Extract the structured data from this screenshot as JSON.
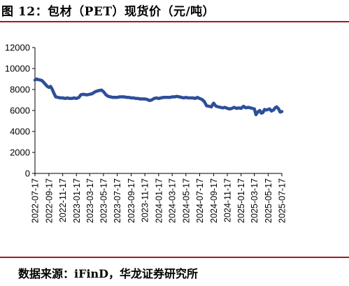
{
  "figure": {
    "title": "图 12：包材（PET）现货价（元/吨）",
    "source": "数据来源：iFinD，华龙证券研究所"
  },
  "chart_data": {
    "type": "line",
    "title": "图 12：包材（PET）现货价（元/吨）",
    "xlabel": "",
    "ylabel": "",
    "ylim": [
      0,
      12000
    ],
    "yticks": [
      0,
      2000,
      4000,
      6000,
      8000,
      10000,
      12000
    ],
    "ytick_labels": [
      "0",
      "2000",
      "4000",
      "6000",
      "8000",
      "10000",
      "12000"
    ],
    "xlim": [
      "2022-07-17",
      "2025-07-17"
    ],
    "xtick_labels": [
      "2022-07-17",
      "2022-09-17",
      "2022-11-17",
      "2023-01-17",
      "2023-03-17",
      "2023-05-17",
      "2023-07-17",
      "2023-09-17",
      "2023-11-17",
      "2024-01-17",
      "2024-03-17",
      "2024-05-17",
      "2024-07-17",
      "2024-09-17",
      "2024-11-17",
      "2025-01-17",
      "2025-03-17",
      "2025-05-17",
      "2025-07-17"
    ],
    "grid": false,
    "legend": "none",
    "color": "#2e4f9a",
    "series": [
      {
        "x": [
          "2022-07-17",
          "2022-07-24",
          "2022-08-01",
          "2022-08-10",
          "2022-08-17",
          "2022-08-24",
          "2022-09-01",
          "2022-09-10",
          "2022-09-17",
          "2022-09-24",
          "2022-10-01",
          "2022-10-08",
          "2022-10-17",
          "2022-10-28",
          "2022-11-07",
          "2022-11-17",
          "2022-11-28",
          "2022-12-08",
          "2022-12-17",
          "2022-12-28",
          "2023-01-06",
          "2023-01-17",
          "2023-01-28",
          "2023-02-06",
          "2023-02-17",
          "2023-02-28",
          "2023-03-08",
          "2023-03-17",
          "2023-03-28",
          "2023-04-07",
          "2023-04-17",
          "2023-04-28",
          "2023-05-08",
          "2023-05-17",
          "2023-05-28",
          "2023-06-07",
          "2023-06-17",
          "2023-06-28",
          "2023-07-07",
          "2023-07-17",
          "2023-07-28",
          "2023-08-07",
          "2023-08-17",
          "2023-08-28",
          "2023-09-07",
          "2023-09-17",
          "2023-09-28",
          "2023-10-08",
          "2023-10-17",
          "2023-10-28",
          "2023-11-07",
          "2023-11-17",
          "2023-11-28",
          "2023-12-07",
          "2023-12-17",
          "2023-12-28",
          "2024-01-07",
          "2024-01-17",
          "2024-01-28",
          "2024-02-07",
          "2024-02-17",
          "2024-02-28",
          "2024-03-08",
          "2024-03-17",
          "2024-03-28",
          "2024-04-07",
          "2024-04-17",
          "2024-04-28",
          "2024-05-07",
          "2024-05-17",
          "2024-05-28",
          "2024-06-07",
          "2024-06-17",
          "2024-06-28",
          "2024-07-07",
          "2024-07-17",
          "2024-07-28",
          "2024-08-07",
          "2024-08-17",
          "2024-08-28",
          "2024-09-07",
          "2024-09-17",
          "2024-09-28",
          "2024-10-08",
          "2024-10-17",
          "2024-10-28",
          "2024-11-07",
          "2024-11-17",
          "2024-11-28",
          "2024-12-07",
          "2024-12-17",
          "2024-12-28",
          "2025-01-07",
          "2025-01-17",
          "2025-01-28",
          "2025-02-07",
          "2025-02-17",
          "2025-02-28",
          "2025-03-08",
          "2025-03-17",
          "2025-03-24",
          "2025-04-01",
          "2025-04-10",
          "2025-04-17",
          "2025-04-24",
          "2025-05-01",
          "2025-05-10",
          "2025-05-17",
          "2025-05-24",
          "2025-06-01",
          "2025-06-10",
          "2025-06-17",
          "2025-06-24",
          "2025-07-01",
          "2025-07-10",
          "2025-07-17"
        ],
        "y": [
          8900,
          9000,
          8950,
          8900,
          8850,
          8700,
          8500,
          8300,
          8200,
          8300,
          8050,
          7700,
          7300,
          7250,
          7200,
          7200,
          7150,
          7200,
          7150,
          7150,
          7200,
          7150,
          7250,
          7500,
          7550,
          7500,
          7500,
          7550,
          7600,
          7750,
          7850,
          7900,
          7950,
          7800,
          7500,
          7350,
          7300,
          7250,
          7250,
          7250,
          7300,
          7300,
          7300,
          7250,
          7250,
          7200,
          7200,
          7150,
          7150,
          7100,
          7100,
          7100,
          7050,
          6950,
          7000,
          7150,
          7200,
          7150,
          7200,
          7250,
          7250,
          7250,
          7250,
          7300,
          7300,
          7350,
          7300,
          7250,
          7200,
          7250,
          7200,
          7200,
          7200,
          7150,
          7250,
          7150,
          7050,
          6850,
          6450,
          6400,
          6350,
          6700,
          6400,
          6350,
          6300,
          6250,
          6300,
          6200,
          6150,
          6200,
          6300,
          6200,
          6250,
          6200,
          6400,
          6250,
          6300,
          6250,
          6200,
          6150,
          5600,
          5850,
          6000,
          5750,
          5800,
          6100,
          6050,
          6100,
          6150,
          5950,
          6050,
          6250,
          6350,
          6200,
          5850,
          5900
        ]
      }
    ]
  }
}
